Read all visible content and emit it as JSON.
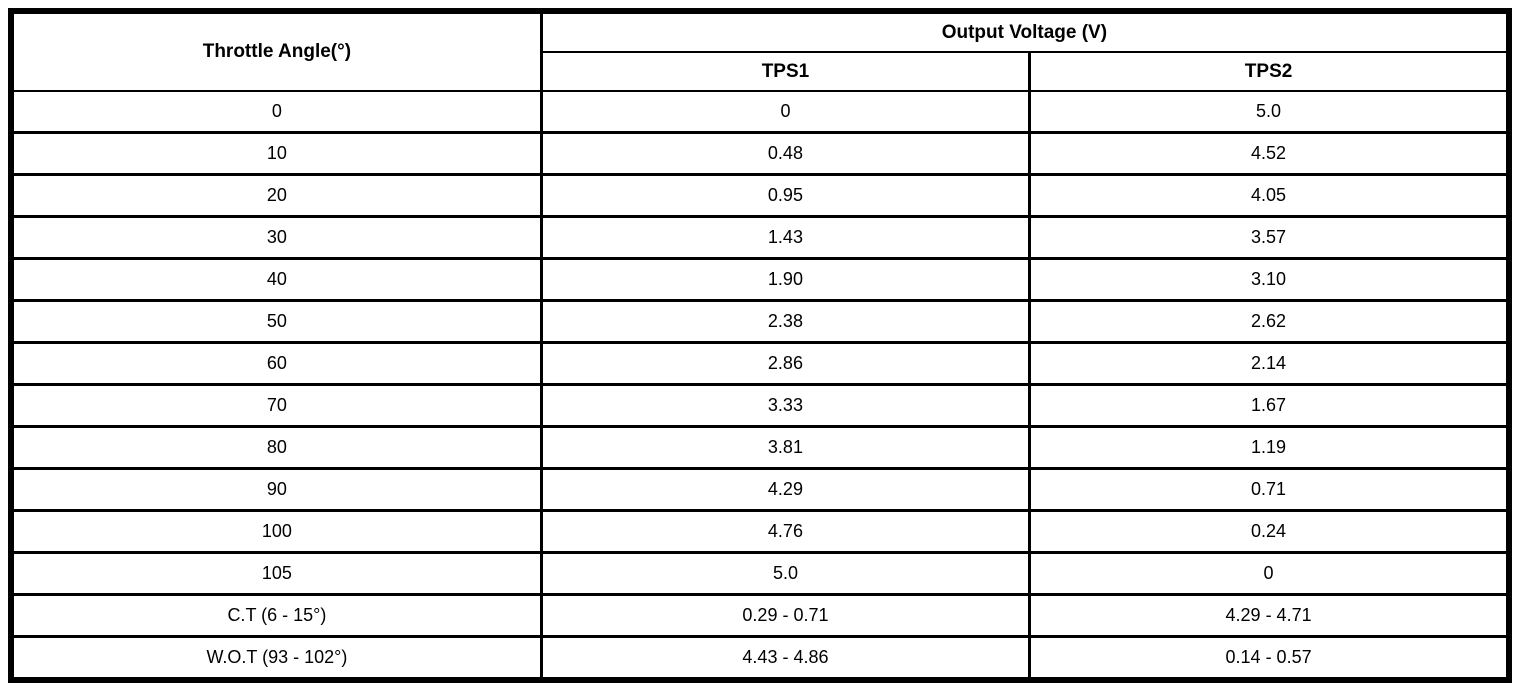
{
  "table": {
    "angle_header": "Throttle Angle(°)",
    "voltage_header": "Output Voltage (V)",
    "sub_headers": [
      "TPS1",
      "TPS2"
    ],
    "rows": [
      [
        "0",
        "0",
        "5.0"
      ],
      [
        "10",
        "0.48",
        "4.52"
      ],
      [
        "20",
        "0.95",
        "4.05"
      ],
      [
        "30",
        "1.43",
        "3.57"
      ],
      [
        "40",
        "1.90",
        "3.10"
      ],
      [
        "50",
        "2.38",
        "2.62"
      ],
      [
        "60",
        "2.86",
        "2.14"
      ],
      [
        "70",
        "3.33",
        "1.67"
      ],
      [
        "80",
        "3.81",
        "1.19"
      ],
      [
        "90",
        "4.29",
        "0.71"
      ],
      [
        "100",
        "4.76",
        "0.24"
      ],
      [
        "105",
        "5.0",
        "0"
      ],
      [
        "C.T (6 - 15°)",
        "0.29 - 0.71",
        "4.29 - 4.71"
      ],
      [
        "W.O.T (93 - 102°)",
        "4.43 - 4.86",
        "0.14 - 0.57"
      ]
    ],
    "colors": {
      "border": "#000000",
      "background": "#ffffff",
      "text": "#000000"
    }
  }
}
